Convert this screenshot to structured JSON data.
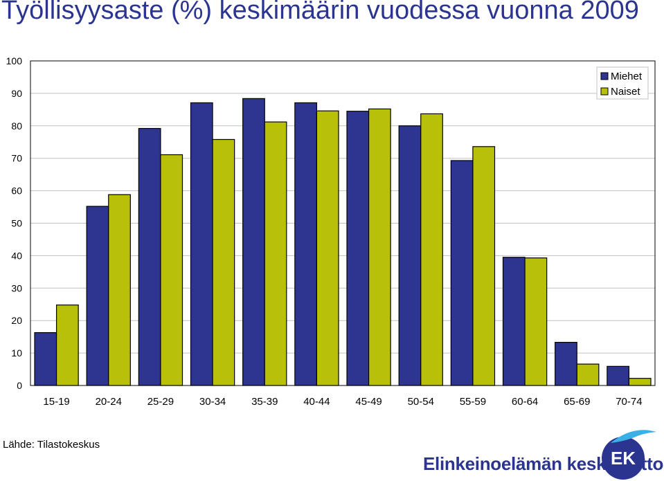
{
  "page": {
    "title": "Työllisyysaste (%) keskimäärin vuodessa vuonna 2009",
    "source": "Lähde: Tilastokeskus",
    "brand_name": "Elinkeinoelämän keskusliitto",
    "logo_text": "EK"
  },
  "colors": {
    "title": "#2b3590",
    "miehet": "#2e3591",
    "naiset": "#b9c00a",
    "gridline": "#c0c0c0",
    "brand": "#2b3590"
  },
  "chart_data": {
    "type": "bar",
    "title": "Työllisyysaste (%) keskimäärin vuodessa vuonna 2009",
    "xlabel": "",
    "ylabel": "",
    "categories": [
      "15-19",
      "20-24",
      "25-29",
      "30-34",
      "35-39",
      "40-44",
      "45-49",
      "50-54",
      "55-59",
      "60-64",
      "65-69",
      "70-74"
    ],
    "series": [
      {
        "name": "Miehet",
        "color": "#2e3591",
        "values": [
          16.3,
          55.2,
          79.2,
          87.1,
          88.4,
          87.1,
          84.5,
          80.0,
          69.3,
          39.5,
          13.3,
          5.9
        ]
      },
      {
        "name": "Naiset",
        "color": "#b9c00a",
        "values": [
          24.8,
          58.8,
          71.1,
          75.8,
          81.2,
          84.6,
          85.2,
          83.7,
          73.6,
          39.3,
          6.6,
          2.2
        ]
      }
    ],
    "ylim": [
      0,
      100
    ],
    "yticks": [
      0,
      10,
      20,
      30,
      40,
      50,
      60,
      70,
      80,
      90,
      100
    ],
    "legend": "top-right",
    "grid": true
  }
}
